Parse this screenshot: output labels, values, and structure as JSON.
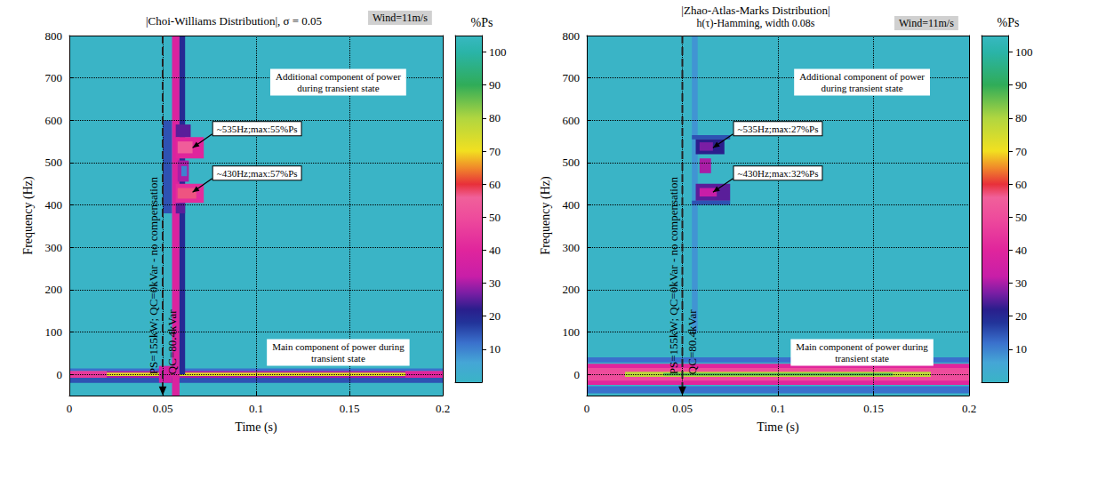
{
  "chart_data": [
    {
      "type": "heatmap",
      "title": "|Choi-Williams Distribution|, σ = 0.05",
      "corner_text": "Wind=11m/s",
      "x_label": "Time (s)",
      "y_label": "Frequency (Hz)",
      "xlim": [
        0,
        0.2
      ],
      "xticks": [
        0,
        0.05,
        0.1,
        0.15,
        0.2
      ],
      "ylim": [
        -50,
        800
      ],
      "yticks": [
        0,
        100,
        200,
        300,
        400,
        500,
        600,
        700,
        800
      ],
      "grid": true,
      "colorbar_label": "%Ps",
      "colorbar_range": [
        0,
        105
      ],
      "colorbar_ticks": [
        10,
        20,
        30,
        40,
        50,
        60,
        70,
        80,
        90,
        100
      ],
      "cells": [
        [
          0,
          0.2,
          -50,
          800,
          0
        ],
        [
          0,
          0.2,
          -20,
          -8,
          15
        ],
        [
          0,
          0.2,
          8,
          14,
          12
        ],
        [
          0,
          0.02,
          -8,
          8,
          45
        ],
        [
          0.02,
          0.18,
          -8,
          8,
          30
        ],
        [
          0.02,
          0.18,
          -4,
          4,
          72
        ],
        [
          0.18,
          0.2,
          -8,
          8,
          40
        ],
        [
          0.048,
          0.055,
          -20,
          20,
          35
        ],
        [
          0.05,
          0.055,
          380,
          600,
          15
        ],
        [
          0.055,
          0.059,
          -50,
          800,
          38
        ],
        [
          0.059,
          0.062,
          0,
          800,
          20
        ],
        [
          0.057,
          0.065,
          560,
          590,
          25
        ],
        [
          0.057,
          0.072,
          510,
          560,
          40
        ],
        [
          0.058,
          0.066,
          522,
          550,
          55
        ],
        [
          0.057,
          0.062,
          380,
          405,
          25
        ],
        [
          0.057,
          0.072,
          405,
          450,
          42
        ],
        [
          0.058,
          0.068,
          415,
          440,
          57
        ],
        [
          0.058,
          0.064,
          455,
          505,
          30
        ],
        [
          0.06,
          0.063,
          468,
          492,
          10
        ]
      ],
      "event_time": 0.05,
      "event_labels": [
        "PS=155kW; QC=0kVar - no compensation",
        "QC=80.4kVar"
      ],
      "annotations": [
        {
          "text": "Additional component of power during transient state"
        },
        {
          "text": "~535Hz;max:55%Ps",
          "time": 0.066,
          "freq": 535
        },
        {
          "text": "~430Hz;max:57%Ps",
          "time": 0.066,
          "freq": 430
        },
        {
          "text": "Main component of power during transient state"
        }
      ]
    },
    {
      "type": "heatmap",
      "title": "|Zhao-Atlas-Marks Distribution|",
      "subtitle": "h(τ)-Hamming, width 0.08s",
      "corner_text": "Wind=11m/s",
      "x_label": "Time (s)",
      "y_label": "Frequency (Hz)",
      "xlim": [
        0,
        0.2
      ],
      "xticks": [
        0,
        0.05,
        0.1,
        0.15,
        0.2
      ],
      "ylim": [
        -50,
        800
      ],
      "yticks": [
        0,
        100,
        200,
        300,
        400,
        500,
        600,
        700,
        800
      ],
      "grid": true,
      "colorbar_label": "%Ps",
      "colorbar_range": [
        0,
        105
      ],
      "colorbar_ticks": [
        10,
        20,
        30,
        40,
        50,
        60,
        70,
        80,
        90,
        100
      ],
      "cells": [
        [
          0,
          0.2,
          -50,
          800,
          0
        ],
        [
          0,
          0.2,
          -45,
          -28,
          12
        ],
        [
          0,
          0.2,
          28,
          40,
          12
        ],
        [
          0,
          0.2,
          -25,
          25,
          40
        ],
        [
          0,
          0.2,
          -15,
          15,
          50
        ],
        [
          0.02,
          0.18,
          -6,
          6,
          78
        ],
        [
          0.04,
          0.16,
          -3,
          3,
          88
        ],
        [
          0.055,
          0.058,
          100,
          800,
          8
        ],
        [
          0.055,
          0.075,
          555,
          565,
          15
        ],
        [
          0.057,
          0.072,
          520,
          555,
          22
        ],
        [
          0.059,
          0.066,
          528,
          548,
          27
        ],
        [
          0.059,
          0.065,
          475,
          510,
          30
        ],
        [
          0.055,
          0.075,
          400,
          410,
          15
        ],
        [
          0.057,
          0.075,
          410,
          450,
          25
        ],
        [
          0.059,
          0.068,
          420,
          440,
          32
        ]
      ],
      "event_time": 0.05,
      "event_labels": [
        "PS=155kW; QC=0kVar - no compensation",
        "QC=80.4kVar"
      ],
      "annotations": [
        {
          "text": "Additional component of power during transient state"
        },
        {
          "text": "~535Hz;max:27%Ps",
          "time": 0.066,
          "freq": 535
        },
        {
          "text": "~430Hz;max:32%Ps",
          "time": 0.066,
          "freq": 430
        },
        {
          "text": "Main component of power during transient state"
        }
      ]
    }
  ]
}
